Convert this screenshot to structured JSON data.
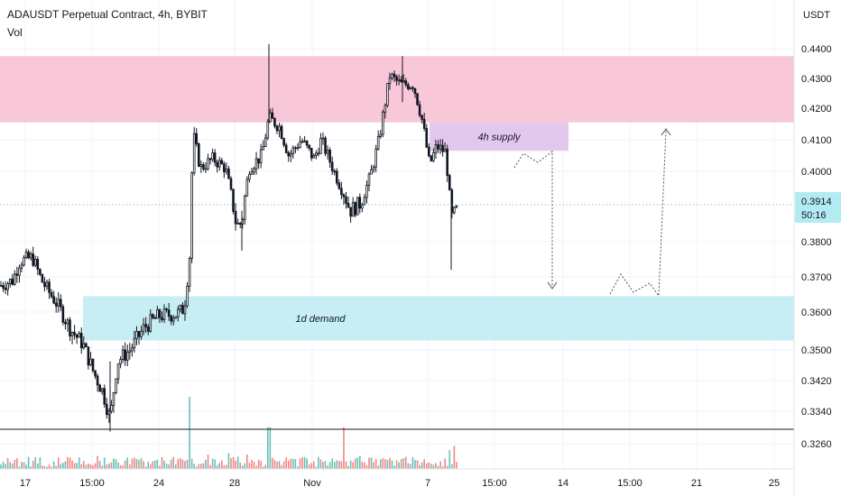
{
  "header": {
    "title": "ADAUSDT Perpetual Contract, 4h, BYBIT",
    "indicator": "Vol"
  },
  "price_axis": {
    "currency": "USDT",
    "ticks": [
      "0.4400",
      "0.4300",
      "0.4200",
      "0.4100",
      "0.4000",
      "0.3800",
      "0.3700",
      "0.3600",
      "0.3500",
      "0.3420",
      "0.3340",
      "0.3260"
    ],
    "current_price": "0.3914",
    "countdown": "50:16"
  },
  "time_axis": {
    "ticks": [
      "17",
      "15:00",
      "24",
      "28",
      "Nov",
      "7",
      "15:00",
      "14",
      "15:00",
      "21",
      "25"
    ]
  },
  "zones": [
    {
      "label": "",
      "kind": "supply-major",
      "from": "Oct 25",
      "to": "far right",
      "low": 0.4155,
      "high": 0.4375,
      "color": "#f8c8d8"
    },
    {
      "label": "4h supply",
      "kind": "supply",
      "from": "Nov 7",
      "to": "Nov 12",
      "low": 0.4065,
      "high": 0.4155,
      "color": "#e3c8ee"
    },
    {
      "label": "1d demand",
      "kind": "demand",
      "from": "Oct 20",
      "to": "far right",
      "low": 0.3525,
      "high": 0.3645,
      "color": "#c6eef4"
    }
  ],
  "colors": {
    "up": "#26a69a",
    "down": "#ef5350",
    "candle": "#131722",
    "current_price_tag": "#b2ebf2"
  },
  "chart_data": {
    "type": "candlestick",
    "title": "ADAUSDT Perpetual Contract, 4h, BYBIT",
    "y_unit": "USDT",
    "ylim": [
      0.3235,
      0.4485
    ],
    "current_price": 0.3914,
    "path_anchors": [
      [
        0,
        0.3675
      ],
      [
        14,
        0.369
      ],
      [
        22,
        0.3745
      ],
      [
        36,
        0.3755
      ],
      [
        46,
        0.369
      ],
      [
        56,
        0.365
      ],
      [
        64,
        0.362
      ],
      [
        78,
        0.3555
      ],
      [
        92,
        0.3515
      ],
      [
        104,
        0.344
      ],
      [
        114,
        0.339
      ],
      [
        122,
        0.332
      ],
      [
        130,
        0.347
      ],
      [
        144,
        0.35
      ],
      [
        160,
        0.356
      ],
      [
        176,
        0.359
      ],
      [
        196,
        0.3595
      ],
      [
        204,
        0.361
      ],
      [
        210,
        0.375
      ],
      [
        214,
        0.412
      ],
      [
        222,
        0.401
      ],
      [
        236,
        0.404
      ],
      [
        250,
        0.401
      ],
      [
        262,
        0.384
      ],
      [
        268,
        0.385
      ],
      [
        276,
        0.401
      ],
      [
        290,
        0.405
      ],
      [
        298,
        0.417
      ],
      [
        310,
        0.414
      ],
      [
        320,
        0.405
      ],
      [
        334,
        0.41
      ],
      [
        348,
        0.404
      ],
      [
        356,
        0.41
      ],
      [
        366,
        0.403
      ],
      [
        376,
        0.396
      ],
      [
        388,
        0.388
      ],
      [
        400,
        0.39
      ],
      [
        410,
        0.398
      ],
      [
        420,
        0.41
      ],
      [
        432,
        0.431
      ],
      [
        444,
        0.428
      ],
      [
        458,
        0.428
      ],
      [
        468,
        0.416
      ],
      [
        476,
        0.402
      ],
      [
        484,
        0.408
      ],
      [
        494,
        0.406
      ],
      [
        500,
        0.386
      ],
      [
        506,
        0.388
      ],
      [
        508,
        0.3914
      ]
    ],
    "volume_spikes": [
      [
        107,
        18
      ],
      [
        210,
        100
      ],
      [
        231,
        20
      ],
      [
        254,
        22
      ],
      [
        275,
        20
      ],
      [
        298,
        58
      ],
      [
        335,
        16
      ],
      [
        382,
        58
      ],
      [
        398,
        18
      ],
      [
        498,
        26
      ],
      [
        504,
        32
      ]
    ],
    "volume_axis_separator": 0.329,
    "annotations": [
      {
        "type": "projection-path",
        "points": [
          [
            0.4055,
            "Nov 8 12:00"
          ],
          [
            0.4075,
            "Nov 8 20:00"
          ],
          [
            0.405,
            "Nov 9"
          ],
          [
            0.4085,
            "Nov 9 20:00"
          ],
          [
            0.3665,
            "Nov 11 12:00"
          ]
        ]
      },
      {
        "type": "projection-path",
        "points": [
          [
            0.366,
            "Nov 16"
          ],
          [
            0.371,
            "Nov 16 20:00"
          ],
          [
            0.3665,
            "Nov 17 12:00"
          ],
          [
            0.369,
            "Nov 18"
          ],
          [
            0.3655,
            "Nov 18 12:00"
          ],
          [
            0.4115,
            "Nov 19"
          ]
        ]
      }
    ]
  }
}
